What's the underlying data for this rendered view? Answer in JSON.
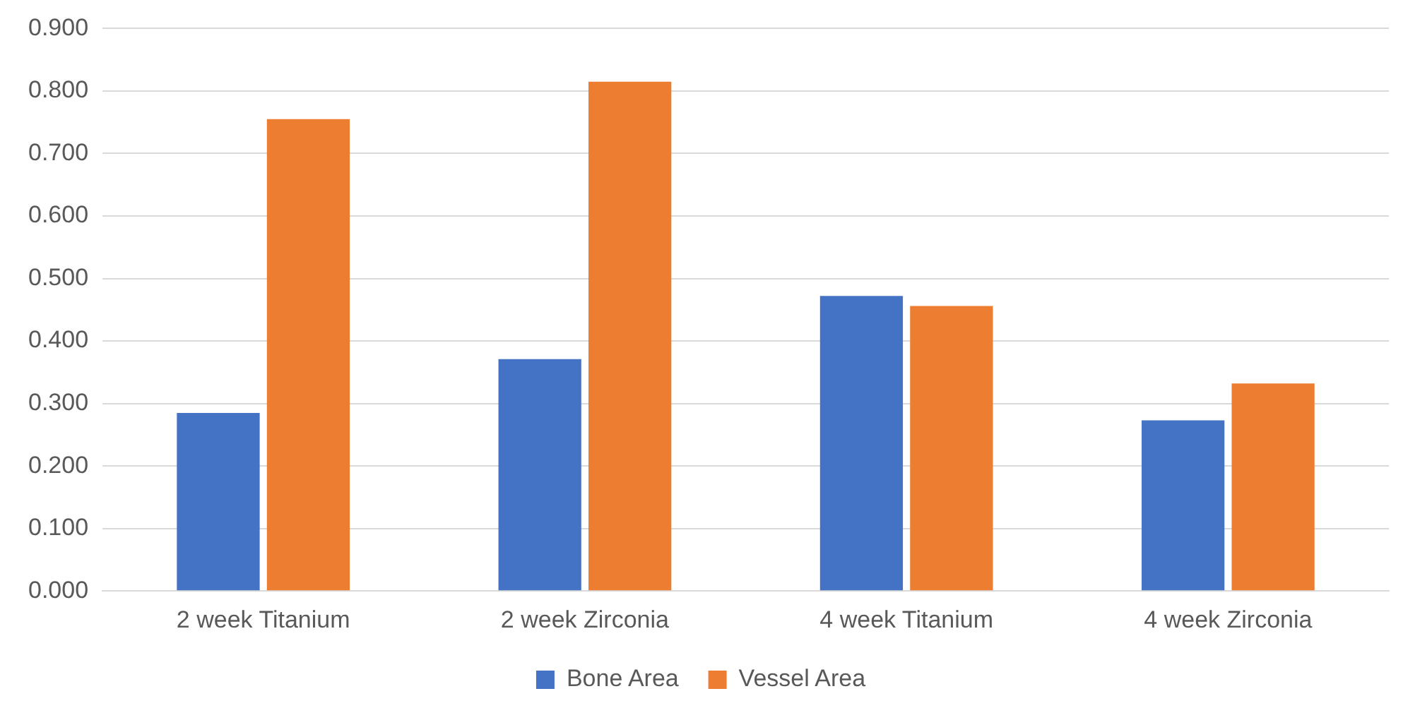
{
  "chart_data": {
    "type": "bar",
    "categories": [
      "2 week Titanium",
      "2 week Zirconia",
      "4 week Titanium",
      "4 week Zirconia"
    ],
    "series": [
      {
        "name": "Bone Area",
        "color": "#4472c4",
        "values": [
          0.285,
          0.371,
          0.472,
          0.273
        ]
      },
      {
        "name": "Vessel Area",
        "color": "#ed7d31",
        "values": [
          0.755,
          0.815,
          0.456,
          0.332
        ]
      }
    ],
    "ylim": [
      0,
      0.9
    ],
    "yticks": [
      {
        "value": 0,
        "label": "0.000"
      },
      {
        "value": 0.1,
        "label": "0.100"
      },
      {
        "value": 0.2,
        "label": "0.200"
      },
      {
        "value": 0.3,
        "label": "0.300"
      },
      {
        "value": 0.4,
        "label": "0.400"
      },
      {
        "value": 0.5,
        "label": "0.500"
      },
      {
        "value": 0.6,
        "label": "0.600"
      },
      {
        "value": 0.7,
        "label": "0.700"
      },
      {
        "value": 0.8,
        "label": "0.800"
      },
      {
        "value": 0.9,
        "label": "0.900"
      }
    ],
    "grid": "y",
    "legend": "bottom"
  }
}
